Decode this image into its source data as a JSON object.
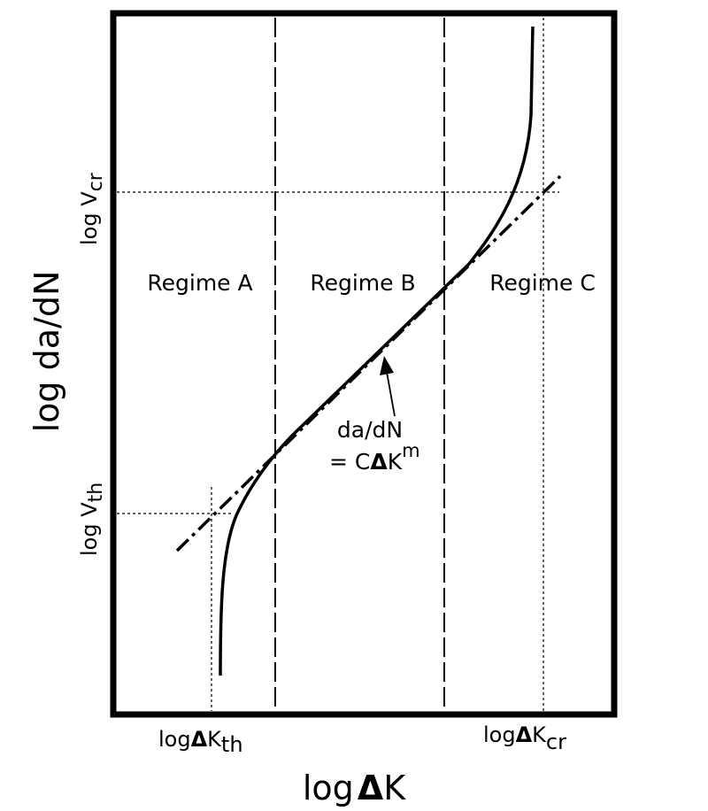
{
  "x_axis": {
    "prefix": "log",
    "symbol": "Δ",
    "var": "K"
  },
  "y_axis": {
    "label": "log da/dN"
  },
  "regimes": {
    "a": "Regime A",
    "b": "Regime B",
    "c": "Regime C"
  },
  "y_ticks": {
    "v_th": {
      "prefix": "log V",
      "sub": "th"
    },
    "v_cr": {
      "prefix": "log V",
      "sub": "cr"
    }
  },
  "x_ticks": {
    "k_th": {
      "prefix": "log",
      "symbol": "Δ",
      "var": "K",
      "sub": "th"
    },
    "k_cr": {
      "prefix": "log",
      "symbol": "Δ",
      "var": "K",
      "sub": "cr"
    }
  },
  "equation": {
    "line1": "da/dN",
    "eq_sign": "= C",
    "symbol": "Δ",
    "var": "K",
    "exponent": "m"
  },
  "colors": {
    "stroke": "#000000",
    "background": "#ffffff"
  }
}
